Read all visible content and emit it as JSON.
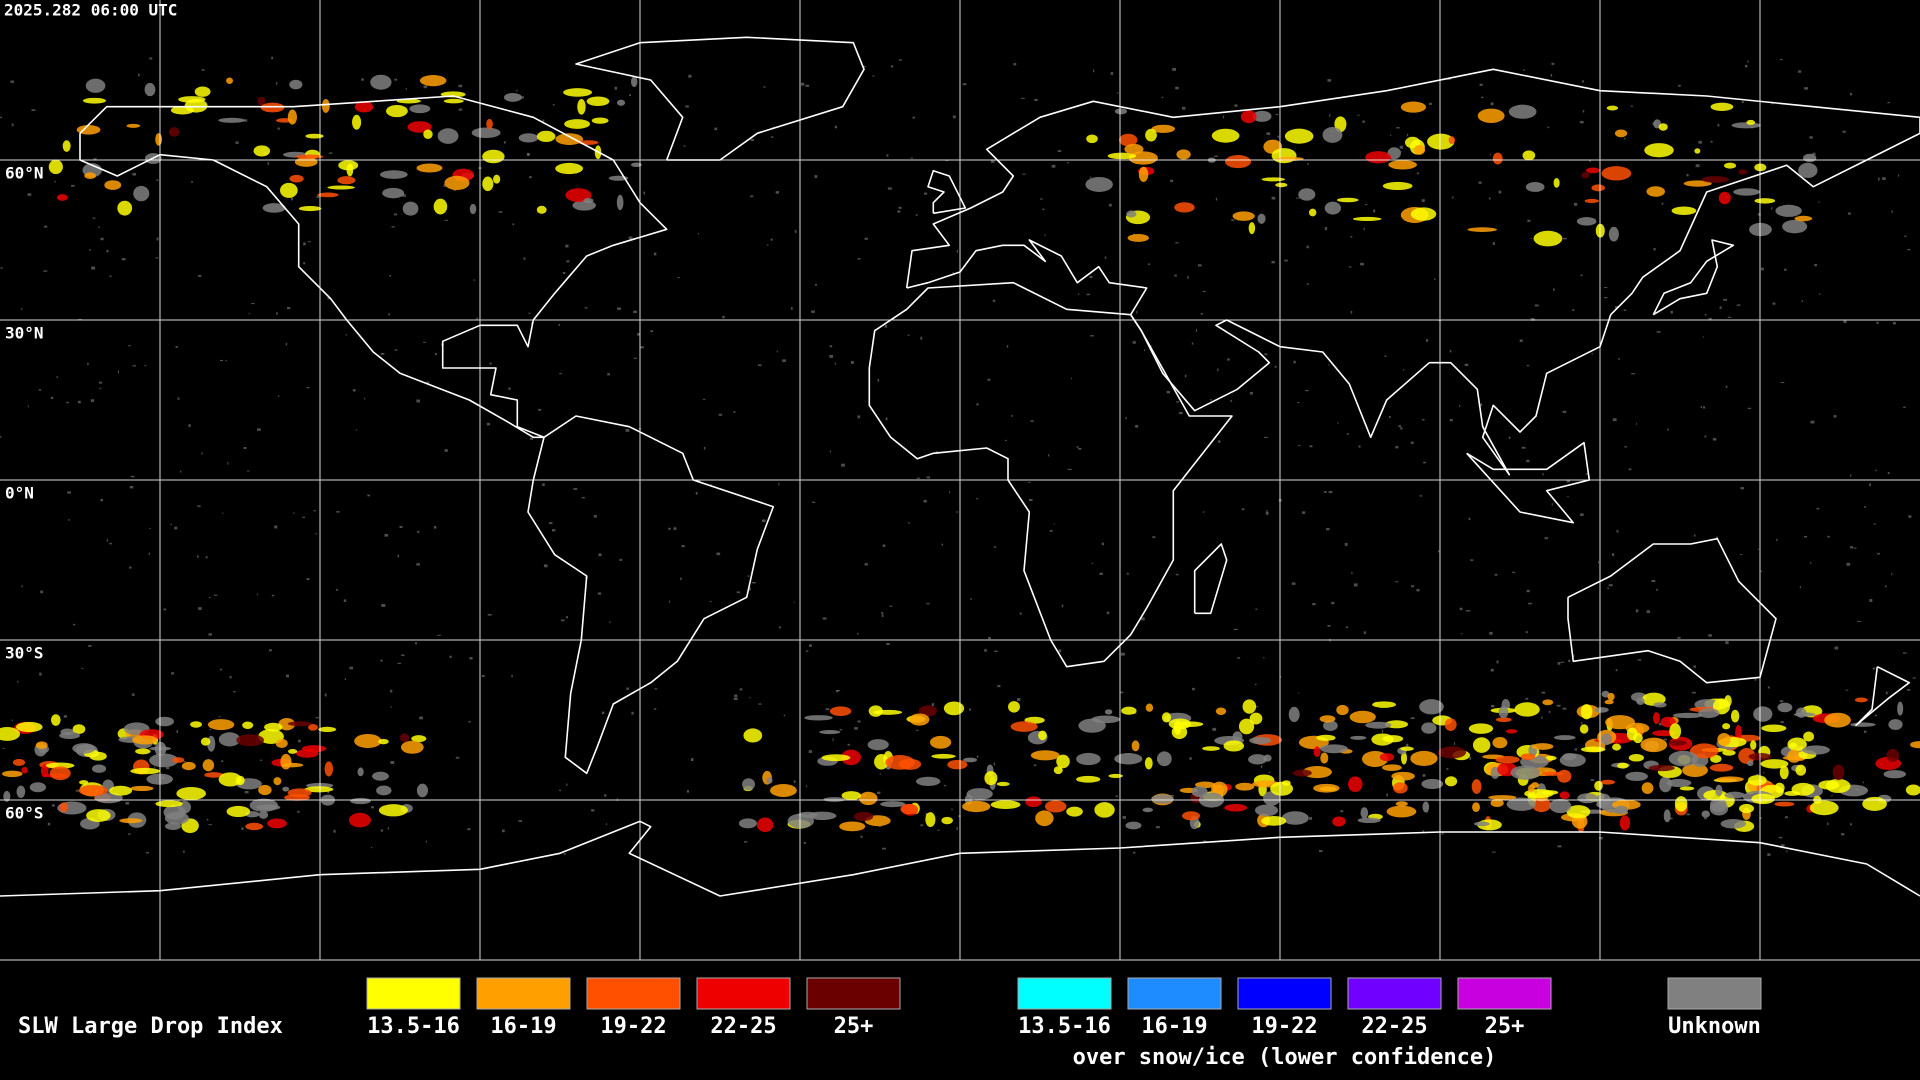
{
  "header": {
    "timestamp": "2025.282 06:00 UTC"
  },
  "map": {
    "latitude_labels": [
      "60°N",
      "30°N",
      "0°N",
      "30°S",
      "60°S"
    ]
  },
  "legend": {
    "title": "SLW Large Drop Index",
    "groups": [
      {
        "items": [
          {
            "label": "13.5-16",
            "color": "#ffff00"
          },
          {
            "label": "16-19",
            "color": "#ffa000"
          },
          {
            "label": "19-22",
            "color": "#ff5000"
          },
          {
            "label": "22-25",
            "color": "#ee0000"
          },
          {
            "label": "25+",
            "color": "#6a0000"
          }
        ]
      },
      {
        "items": [
          {
            "label": "13.5-16",
            "color": "#00ffff"
          },
          {
            "label": "16-19",
            "color": "#1e8cff"
          },
          {
            "label": "19-22",
            "color": "#0000ff"
          },
          {
            "label": "22-25",
            "color": "#7000ff"
          },
          {
            "label": "25+",
            "color": "#c800e0"
          }
        ],
        "caption": "over snow/ice (lower confidence)"
      },
      {
        "items": [
          {
            "label": "Unknown",
            "color": "#808080"
          }
        ]
      }
    ]
  }
}
